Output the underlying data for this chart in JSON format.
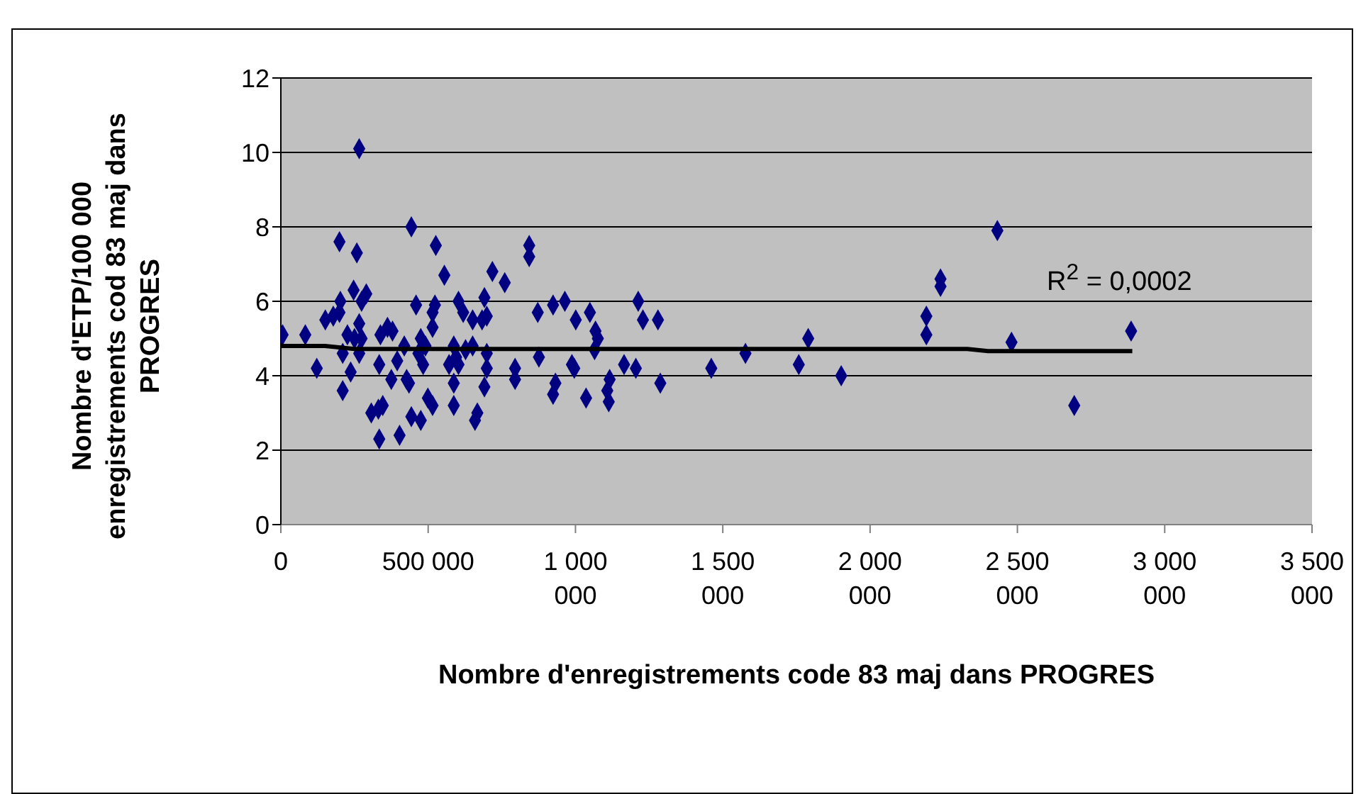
{
  "chart_data": {
    "type": "scatter",
    "xlabel": "Nombre d'enregistrements code 83 maj dans PROGRES",
    "ylabel": "Nombre d'ETP/100 000 enregistrements cod 83 maj dans PROGRES",
    "annotations": [
      "R$^{2}$ = 0,0002"
    ],
    "xlim": [
      0,
      3500000
    ],
    "xticks": [
      0,
      {
        "value": 500000,
        "label": "500 000"
      },
      {
        "value": 1000000,
        "label": "1 000 000"
      },
      {
        "value": 1500000,
        "label": "1 500 000"
      },
      {
        "value": 2000000,
        "label": "2 000 000"
      },
      {
        "value": 2500000,
        "label": "2 500 000"
      },
      {
        "value": 3000000,
        "label": "3 000 000"
      },
      {
        "value": 3500000,
        "label": "3 500 000"
      }
    ],
    "ylim": [
      0,
      12
    ],
    "yticks": [
      0,
      2,
      4,
      6,
      8,
      10,
      12
    ],
    "grid": "y",
    "legend": false,
    "marker": "diamond",
    "series": [
      {
        "color": "#000080",
        "x": [
          6000,
          83000,
          122000,
          151000,
          178000,
          199000,
          202000,
          210000,
          199000,
          258000,
          266000,
          247000,
          290000,
          274000,
          266000,
          226000,
          210000,
          250000,
          274000,
          266000,
          237000,
          334000,
          338000,
          362000,
          379000,
          375000,
          419000,
          395000,
          427000,
          435000,
          307000,
          331000,
          346000,
          334000,
          403000,
          443000,
          459000,
          475000,
          467000,
          491000,
          483000,
          515000,
          523000,
          515000,
          526000,
          555000,
          499000,
          515000,
          443000,
          475000,
          587000,
          587000,
          603000,
          619000,
          651000,
          587000,
          595000,
          627000,
          571000,
          603000,
          651000,
          691000,
          699000,
          683000,
          667000,
          659000,
          691000,
          699000,
          699000,
          718000,
          760000,
          795000,
          795000,
          843000,
          843000,
          872000,
          876000,
          924000,
          964000,
          932000,
          924000,
          1001000,
          1049000,
          988000,
          996000,
          1068000,
          1076000,
          1065000,
          1036000,
          1116000,
          1108000,
          1113000,
          1165000,
          1205000,
          1213000,
          1229000,
          1280000,
          1288000,
          1461000,
          1577000,
          1758000,
          1790000,
          1902000,
          2191000,
          2191000,
          2239000,
          2239000,
          2432000,
          2480000,
          2693000,
          2886000
        ],
        "values": [
          5.1,
          5.1,
          4.2,
          5.5,
          5.6,
          5.7,
          6,
          3.6,
          7.6,
          7.3,
          10.1,
          6.3,
          6.2,
          6,
          5.4,
          5.1,
          4.6,
          5,
          5,
          4.6,
          4.1,
          4.3,
          5.1,
          5.3,
          5.2,
          3.9,
          4.8,
          4.4,
          3.9,
          3.8,
          3,
          3.1,
          3.2,
          2.3,
          2.4,
          8,
          5.9,
          5,
          4.6,
          4.8,
          4.3,
          5.7,
          5.9,
          5.3,
          7.5,
          6.7,
          3.4,
          3.2,
          2.9,
          2.8,
          3.2,
          3.8,
          6,
          5.7,
          5.5,
          4.8,
          4.5,
          4.7,
          4.3,
          4.3,
          4.8,
          6.1,
          5.6,
          5.5,
          3,
          2.8,
          3.7,
          4.2,
          4.6,
          6.8,
          6.5,
          4.2,
          3.9,
          7.5,
          7.2,
          5.7,
          4.5,
          5.9,
          6,
          3.8,
          3.5,
          5.5,
          5.7,
          4.3,
          4.2,
          5.2,
          5,
          4.7,
          3.4,
          3.9,
          3.6,
          3.3,
          4.3,
          4.2,
          6,
          5.5,
          5.5,
          3.8,
          4.2,
          4.6,
          4.3,
          5,
          4,
          5.6,
          5.1,
          6.6,
          6.4,
          7.9,
          4.9,
          3.2,
          5.2
        ]
      },
      {
        "type": "line",
        "marker": "none",
        "color": "#000000",
        "x": [
          0,
          150000,
          250000,
          2330000,
          2400000,
          2890000
        ],
        "values": [
          4.8,
          4.8,
          4.72,
          4.72,
          4.66,
          4.66
        ]
      }
    ]
  }
}
